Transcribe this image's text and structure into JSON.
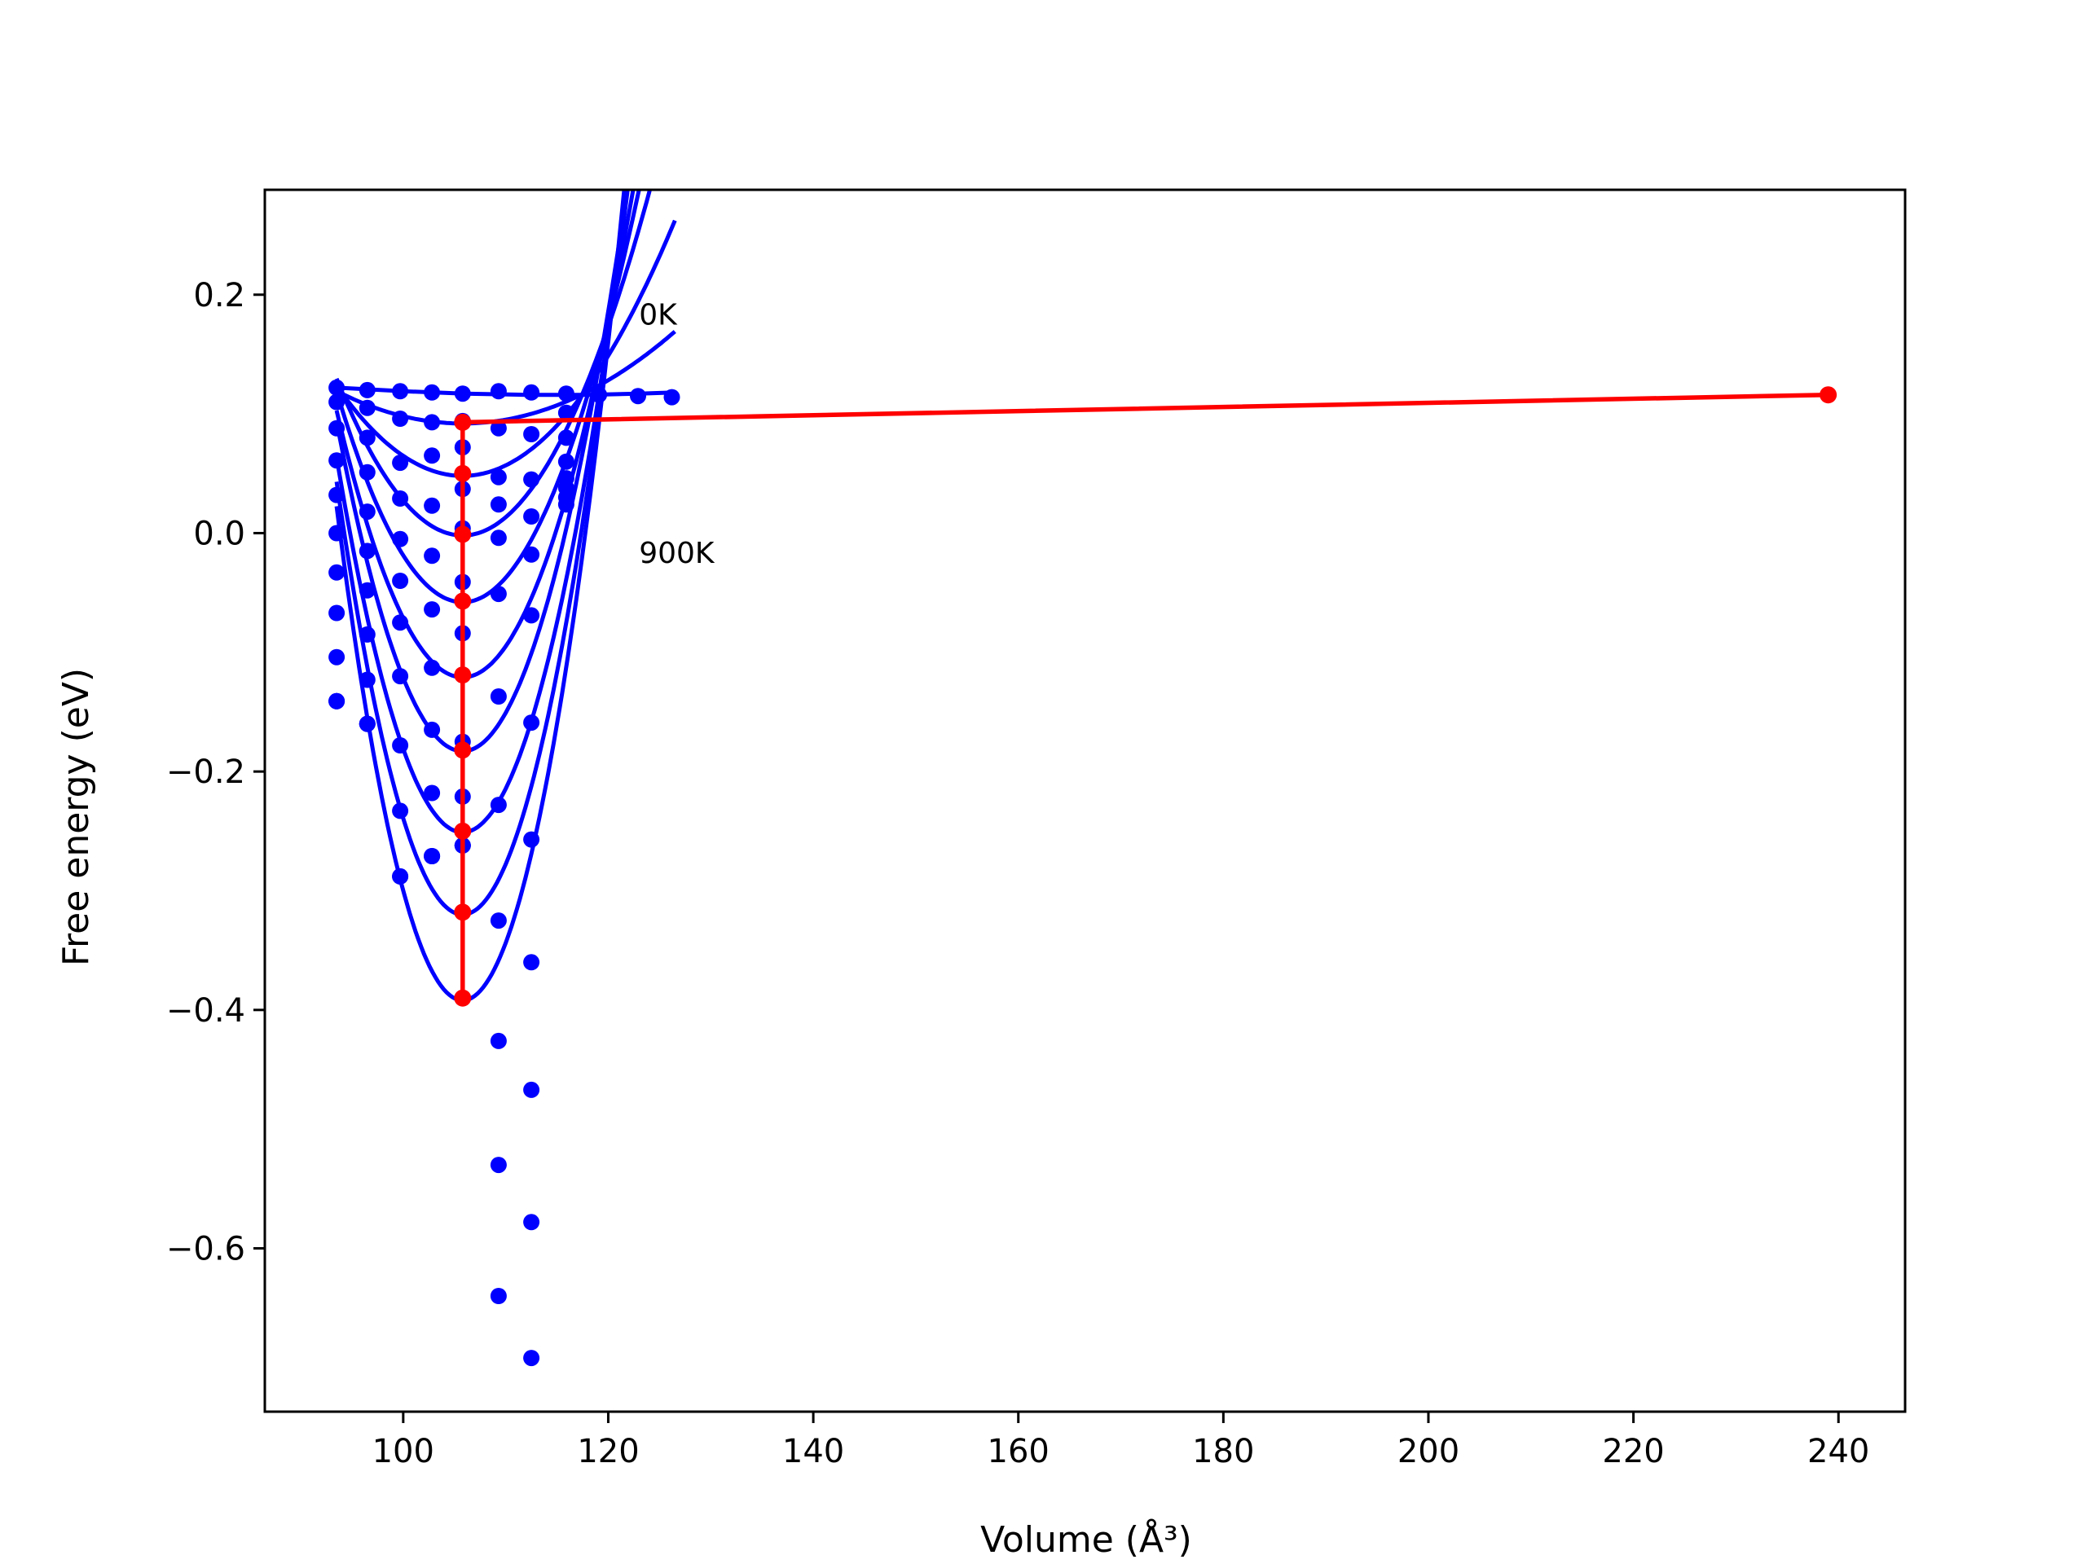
{
  "chart_data": {
    "type": "line",
    "title": "",
    "xlabel": "Volume (Å³)",
    "ylabel": "Free energy (eV)",
    "xlim": [
      86.5,
      246.5
    ],
    "ylim": [
      -0.737,
      0.288
    ],
    "xticks": [
      100,
      120,
      140,
      160,
      180,
      200,
      220,
      240
    ],
    "xtick_labels": [
      "100",
      "120",
      "140",
      "160",
      "180",
      "200",
      "220",
      "240"
    ],
    "yticks": [
      0.2,
      0.0,
      -0.2,
      -0.4,
      -0.6
    ],
    "ytick_labels": [
      "0.2",
      "0.0",
      "−0.2",
      "−0.4",
      "−0.6"
    ],
    "grid": false,
    "legend": false,
    "annotations": [
      {
        "text": "0K",
        "x": 123.0,
        "y": 0.175
      },
      {
        "text": "900K",
        "x": 123.0,
        "y": -0.025
      }
    ],
    "colors": {
      "fit": "#0000ff",
      "data": "#0000ff",
      "equilibrium": "#ff0000"
    },
    "fit_curve_params": [
      {
        "a": 0.00018,
        "v0": 105.8,
        "f0": 0.092
      },
      {
        "a": 0.0005,
        "v0": 105.8,
        "f0": 0.048
      },
      {
        "a": 0.00087,
        "v0": 105.8,
        "f0": -0.002
      },
      {
        "a": 0.00117,
        "v0": 105.8,
        "f0": -0.058
      },
      {
        "a": 0.00148,
        "v0": 105.8,
        "f0": -0.121
      },
      {
        "a": 0.00183,
        "v0": 105.8,
        "f0": -0.183
      },
      {
        "a": 0.00208,
        "v0": 105.8,
        "f0": -0.251
      },
      {
        "a": 0.0024,
        "v0": 105.8,
        "f0": -0.32
      },
      {
        "a": 0.00274,
        "v0": 105.8,
        "f0": -0.392
      }
    ],
    "fit_curve_range": [
      93.5,
      126.5
    ],
    "zero_k_curve": {
      "x": [
        93.5,
        100,
        106,
        112,
        118,
        123,
        126.5
      ],
      "y": [
        0.122,
        0.119,
        0.117,
        0.116,
        0.116,
        0.117,
        0.118
      ]
    },
    "scatter_x": [
      93.5,
      96.5,
      99.7,
      102.8,
      105.8,
      109.3,
      112.5,
      115.9,
      119.1,
      122.9,
      126.2
    ],
    "scatter_series": [
      [
        0.122,
        0.12,
        0.119,
        0.118,
        0.117,
        0.119,
        0.118,
        0.117,
        0.116,
        0.115,
        0.114
      ],
      [
        0.11,
        0.105,
        0.096,
        0.093,
        0.094,
        0.088,
        0.083,
        0.101
      ],
      [
        0.088,
        0.08,
        0.059,
        0.065,
        0.072,
        0.047,
        0.045,
        0.08
      ],
      [
        0.061,
        0.051,
        0.029,
        0.023,
        0.037,
        0.024,
        0.014,
        0.06
      ],
      [
        0.032,
        0.018,
        -0.005,
        -0.019,
        0.004,
        -0.004,
        -0.018,
        0.046
      ],
      [
        0.0,
        -0.015,
        -0.04,
        -0.064,
        -0.041,
        -0.051,
        -0.069,
        0.038
      ],
      [
        -0.033,
        -0.048,
        -0.075,
        -0.113,
        -0.084,
        -0.137,
        -0.159,
        0.03
      ],
      [
        -0.067,
        -0.085,
        -0.12,
        -0.165,
        -0.175,
        -0.228,
        -0.257,
        0.024
      ],
      [
        -0.104,
        -0.123,
        -0.178,
        -0.218,
        -0.221,
        -0.325,
        -0.36
      ],
      [
        -0.141,
        -0.16,
        -0.233,
        -0.271,
        -0.262,
        -0.426,
        -0.467
      ],
      [
        -0.141,
        -0.16,
        -0.288,
        -0.271,
        -0.262,
        -0.53,
        -0.578
      ],
      [
        -0.141,
        -0.16,
        -0.288,
        -0.271,
        -0.262,
        -0.64,
        -0.692
      ]
    ],
    "equilibrium_line": {
      "x": [
        239.0,
        105.8,
        105.8,
        105.8,
        105.8,
        105.8,
        105.8,
        105.8,
        105.8,
        105.8
      ],
      "y": [
        0.116,
        0.093,
        0.05,
        -0.001,
        -0.057,
        -0.119,
        -0.182,
        -0.25,
        -0.318,
        -0.39
      ]
    }
  }
}
